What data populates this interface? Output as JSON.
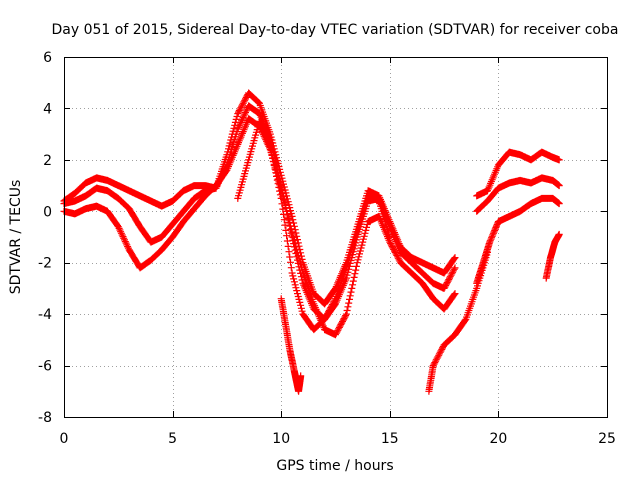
{
  "chart_data": {
    "type": "scatter",
    "title": "Day 051 of 2015, Sidereal Day-to-day VTEC variation (SDTVAR) for receiver coba",
    "xlabel": "GPS time / hours",
    "ylabel": "SDTVAR / TECUs",
    "xlim": [
      0,
      25
    ],
    "ylim": [
      -8,
      6
    ],
    "xticks": [
      0,
      5,
      10,
      15,
      20,
      25
    ],
    "yticks": [
      -8,
      -6,
      -4,
      -2,
      0,
      2,
      4,
      6
    ],
    "grid": true,
    "marker": "+",
    "color": "#ff0000",
    "series": [
      {
        "name": "trace-1",
        "x": [
          0.0,
          0.5,
          1.0,
          1.5,
          2.0,
          2.5,
          3.0,
          3.5,
          4.0,
          4.5,
          5.0,
          5.5,
          6.0,
          6.5,
          7.0,
          7.5,
          8.0,
          8.5,
          9.0,
          9.5,
          10.0,
          10.5,
          11.0,
          11.5,
          12.0,
          12.5,
          13.0,
          13.5,
          14.0,
          14.5,
          15.0,
          15.5,
          16.0,
          16.5,
          17.0,
          17.5,
          18.0
        ],
        "y": [
          0.0,
          -0.1,
          0.1,
          0.2,
          0.0,
          -0.6,
          -1.5,
          -2.2,
          -1.9,
          -1.5,
          -1.0,
          -0.4,
          0.1,
          0.6,
          1.0,
          1.6,
          2.6,
          3.6,
          3.3,
          2.4,
          0.8,
          -0.8,
          -2.4,
          -3.6,
          -4.6,
          -4.8,
          -4.0,
          -2.0,
          -0.4,
          -0.2,
          -1.2,
          -2.0,
          -2.4,
          -2.8,
          -3.4,
          -3.8,
          -3.2
        ]
      },
      {
        "name": "trace-2",
        "x": [
          0.0,
          0.5,
          1.0,
          1.5,
          2.0,
          2.5,
          3.0,
          3.5,
          4.0,
          4.5,
          5.0,
          5.5,
          6.0,
          6.5,
          7.0,
          7.5,
          8.0,
          8.5,
          9.0,
          9.5,
          10.0,
          10.5,
          11.0,
          11.5,
          12.0,
          12.5,
          13.0,
          13.5,
          14.0,
          14.5,
          15.0,
          15.5,
          16.0,
          16.5,
          17.0,
          17.5,
          18.0
        ],
        "y": [
          0.3,
          0.4,
          0.6,
          0.9,
          0.8,
          0.5,
          0.1,
          -0.6,
          -1.2,
          -1.0,
          -0.5,
          0.0,
          0.5,
          0.8,
          0.9,
          1.8,
          3.2,
          4.1,
          3.8,
          2.8,
          1.0,
          -1.0,
          -2.8,
          -3.8,
          -4.2,
          -3.6,
          -2.6,
          -1.0,
          0.4,
          0.5,
          -0.6,
          -1.6,
          -2.0,
          -2.4,
          -2.8,
          -3.0,
          -2.2
        ]
      },
      {
        "name": "trace-3",
        "x": [
          0.0,
          0.5,
          1.0,
          1.5,
          2.0,
          2.5,
          3.0,
          3.5,
          4.0,
          4.5,
          5.0,
          5.5,
          6.0,
          6.5,
          7.0,
          7.5,
          8.0,
          8.5,
          9.0,
          9.5,
          10.0,
          10.5,
          11.0,
          11.5,
          12.0,
          12.5,
          13.0,
          13.5,
          14.0,
          14.5,
          15.0,
          15.5,
          16.0,
          16.5,
          17.0,
          17.5,
          18.0
        ],
        "y": [
          0.4,
          0.7,
          1.1,
          1.3,
          1.2,
          1.0,
          0.8,
          0.6,
          0.4,
          0.2,
          0.4,
          0.8,
          1.0,
          1.0,
          0.9,
          2.2,
          3.8,
          4.6,
          4.2,
          3.0,
          1.4,
          -0.2,
          -2.0,
          -3.2,
          -3.6,
          -3.0,
          -2.0,
          -0.6,
          0.8,
          0.6,
          -0.4,
          -1.4,
          -1.8,
          -2.0,
          -2.2,
          -2.4,
          -1.8
        ]
      },
      {
        "name": "trace-4",
        "x": [
          8.0,
          8.5,
          9.0,
          9.5,
          10.0,
          10.5,
          11.0,
          11.5,
          12.0,
          12.5,
          13.0,
          13.5,
          14.0,
          14.5,
          15.0
        ],
        "y": [
          0.5,
          2.0,
          3.5,
          2.5,
          0.5,
          -2.4,
          -4.0,
          -4.6,
          -4.2,
          -3.4,
          -2.2,
          -0.8,
          0.6,
          0.4,
          -1.0
        ]
      },
      {
        "name": "trace-5",
        "x": [
          10.0,
          10.2,
          10.4,
          10.6,
          10.7,
          10.8,
          10.9
        ],
        "y": [
          -3.4,
          -4.4,
          -5.4,
          -6.2,
          -6.6,
          -7.0,
          -6.4
        ]
      },
      {
        "name": "trace-6",
        "x": [
          16.8,
          17.0,
          17.5,
          18.0,
          18.5,
          19.0,
          19.5
        ],
        "y": [
          -7.0,
          -6.0,
          -5.2,
          -4.8,
          -4.2,
          -3.0,
          -1.6
        ]
      },
      {
        "name": "trace-7",
        "x": [
          19.0,
          19.5,
          20.0,
          20.5,
          21.0,
          21.5,
          22.0,
          22.5,
          22.8
        ],
        "y": [
          0.6,
          0.8,
          1.8,
          2.3,
          2.2,
          2.0,
          2.3,
          2.1,
          2.0
        ]
      },
      {
        "name": "trace-8",
        "x": [
          19.0,
          19.5,
          20.0,
          20.5,
          21.0,
          21.5,
          22.0,
          22.5,
          22.8
        ],
        "y": [
          0.0,
          0.4,
          0.9,
          1.1,
          1.2,
          1.1,
          1.3,
          1.2,
          1.0
        ]
      },
      {
        "name": "trace-9",
        "x": [
          19.0,
          19.3,
          19.6,
          20.0,
          20.5,
          21.0,
          21.5,
          22.0,
          22.5,
          22.8
        ],
        "y": [
          -2.8,
          -2.0,
          -1.2,
          -0.4,
          -0.2,
          0.0,
          0.3,
          0.5,
          0.5,
          0.3
        ]
      },
      {
        "name": "trace-10",
        "x": [
          22.2,
          22.4,
          22.6,
          22.8
        ],
        "y": [
          -2.6,
          -1.8,
          -1.2,
          -0.9
        ]
      }
    ]
  }
}
